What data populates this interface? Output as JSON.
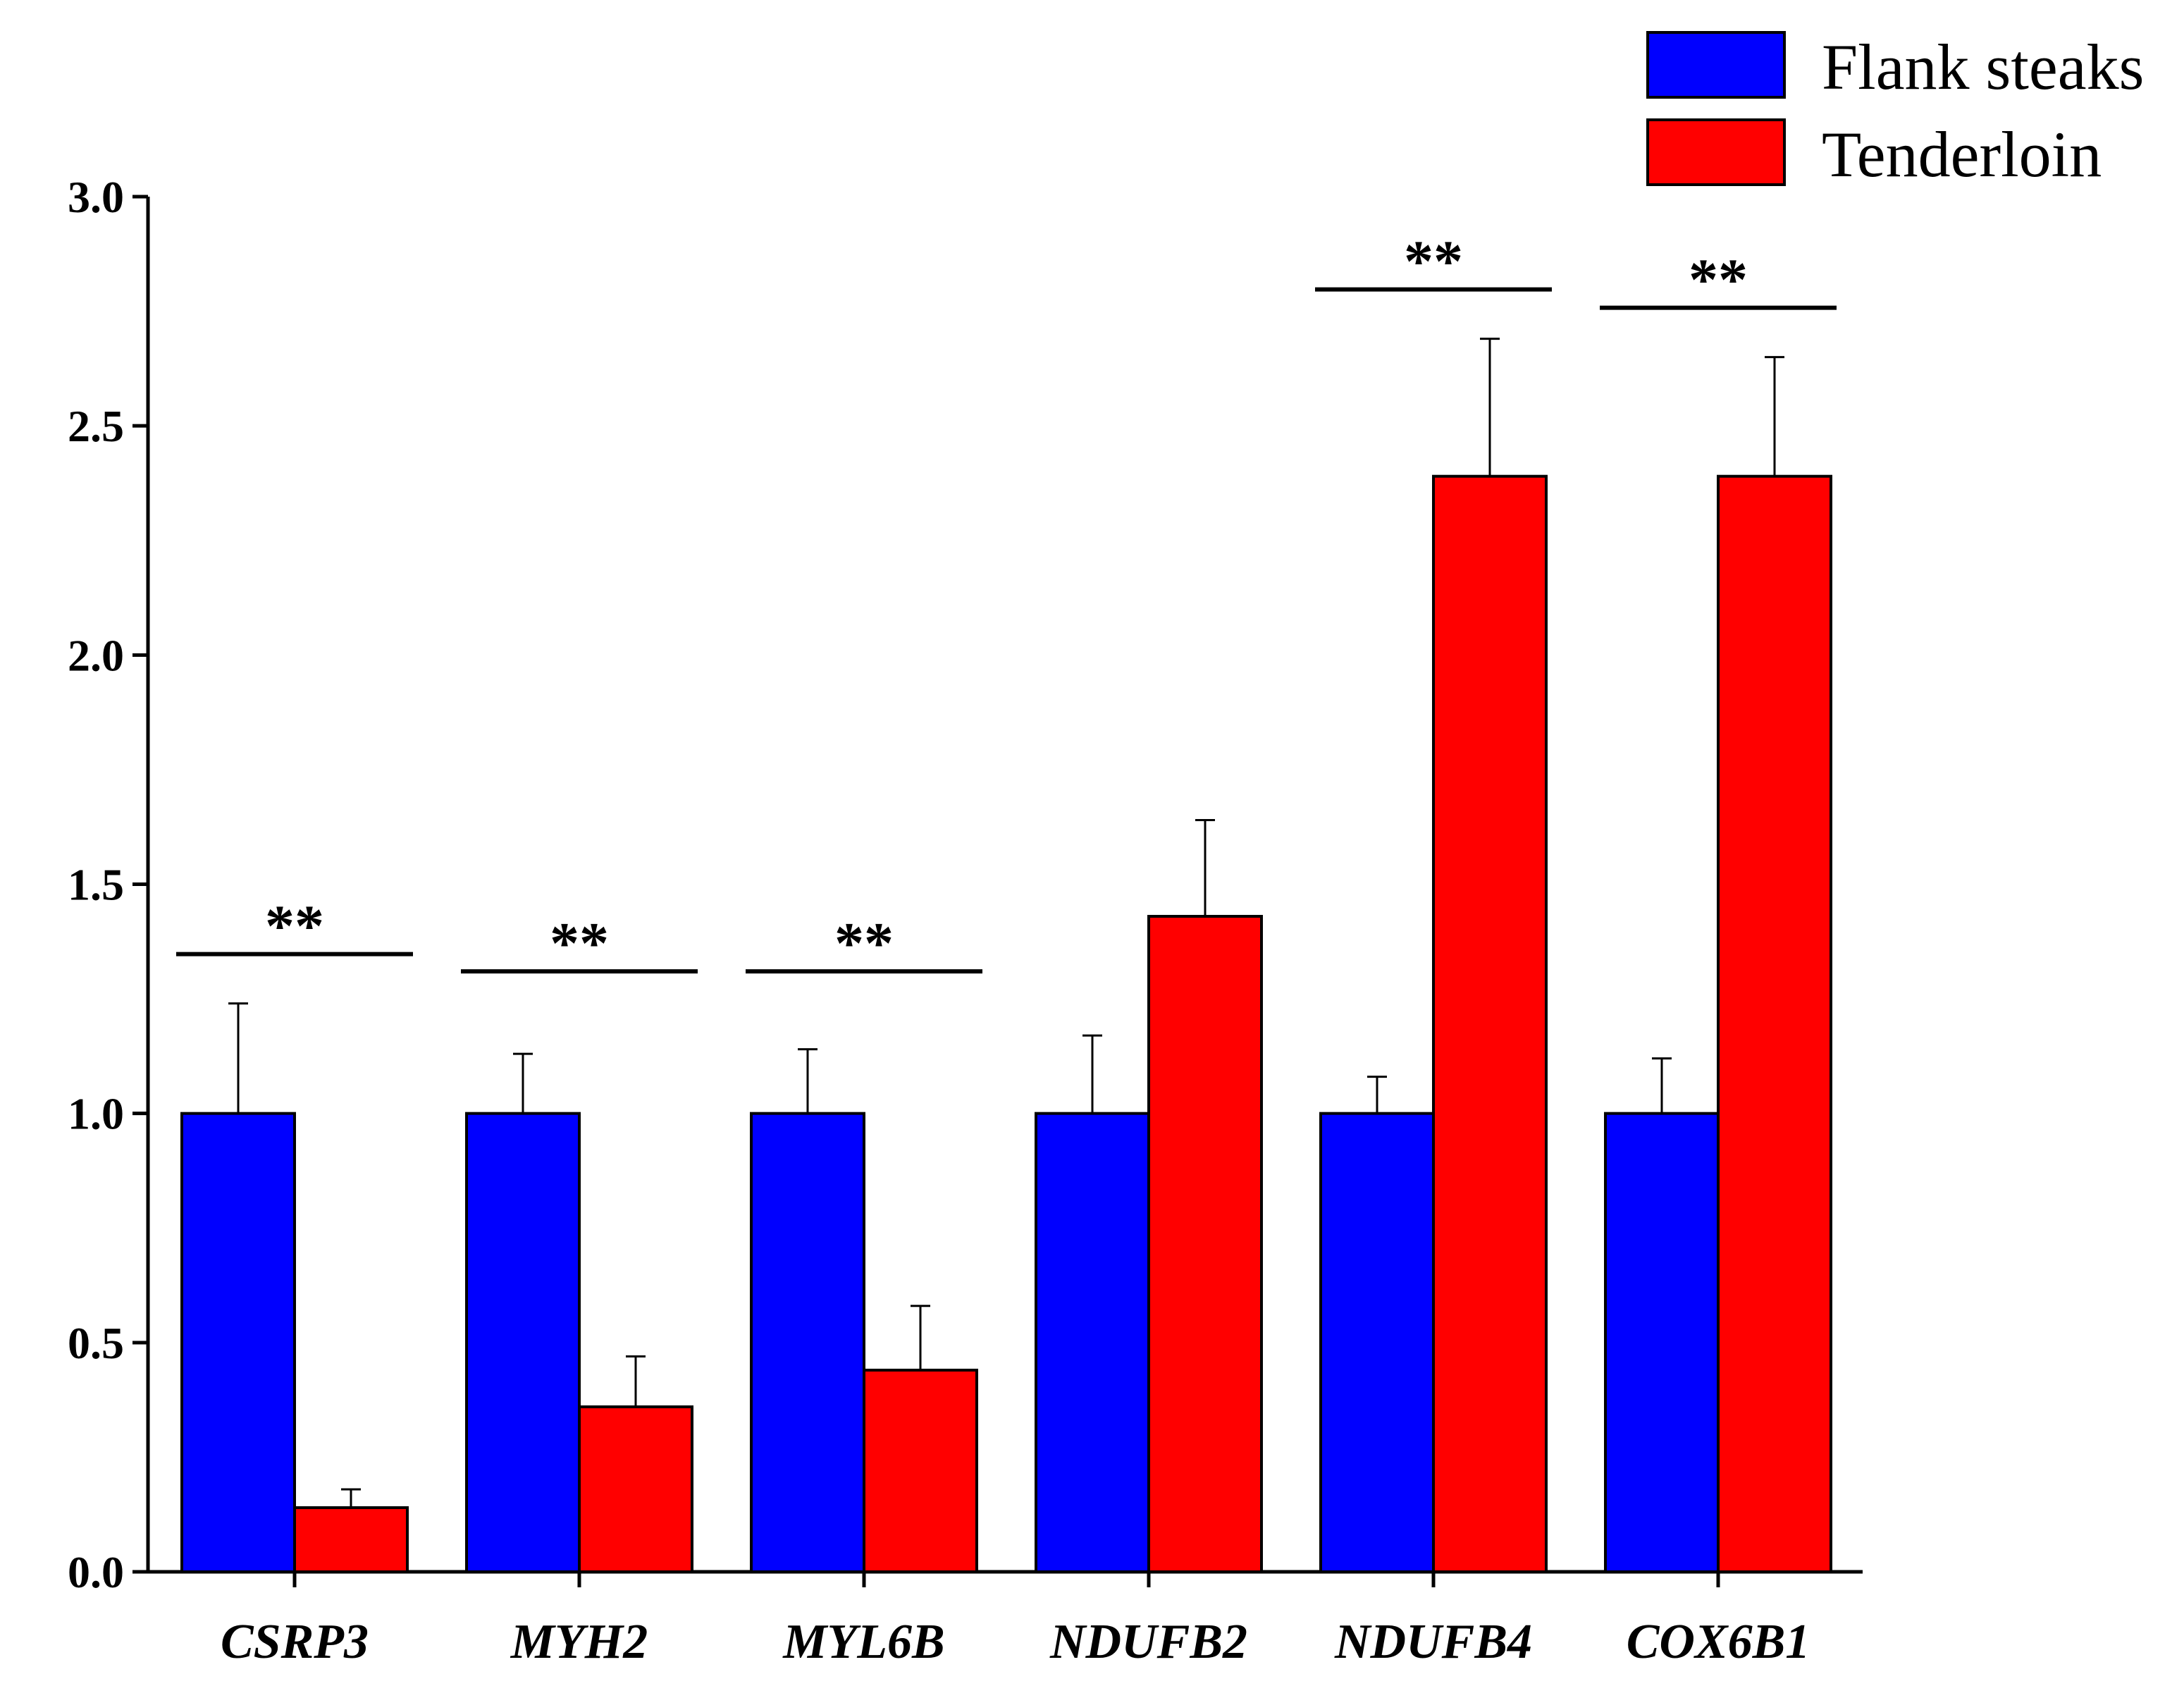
{
  "chart_data": {
    "type": "bar",
    "title": "",
    "xlabel": "",
    "ylabel": "",
    "ylim": [
      0,
      3.0
    ],
    "yticks": [
      "0.0",
      "0.5",
      "1.0",
      "1.5",
      "2.0",
      "2.5",
      "3.0"
    ],
    "grid": false,
    "legend_position": "top-right",
    "categories": [
      "CSRP3",
      "MYH2",
      "MYL6B",
      "NDUFB2",
      "NDUFB4",
      "COX6B1"
    ],
    "series": [
      {
        "name": "Flank steaks",
        "color": "#0000ff",
        "values": [
          1.0,
          1.0,
          1.0,
          1.0,
          1.0,
          1.0
        ],
        "errors": [
          0.24,
          0.13,
          0.14,
          0.17,
          0.08,
          0.12
        ]
      },
      {
        "name": "Tenderloin",
        "color": "#ff0000",
        "values": [
          0.14,
          0.36,
          0.44,
          1.43,
          2.39,
          2.39
        ],
        "errors": [
          0.04,
          0.11,
          0.14,
          0.21,
          0.3,
          0.26
        ]
      }
    ],
    "significance": [
      {
        "category": "CSRP3",
        "label": "**"
      },
      {
        "category": "MYH2",
        "label": "**"
      },
      {
        "category": "MYL6B",
        "label": "**"
      },
      {
        "category": "NDUFB4",
        "label": "**"
      },
      {
        "category": "COX6B1",
        "label": "**"
      }
    ]
  }
}
